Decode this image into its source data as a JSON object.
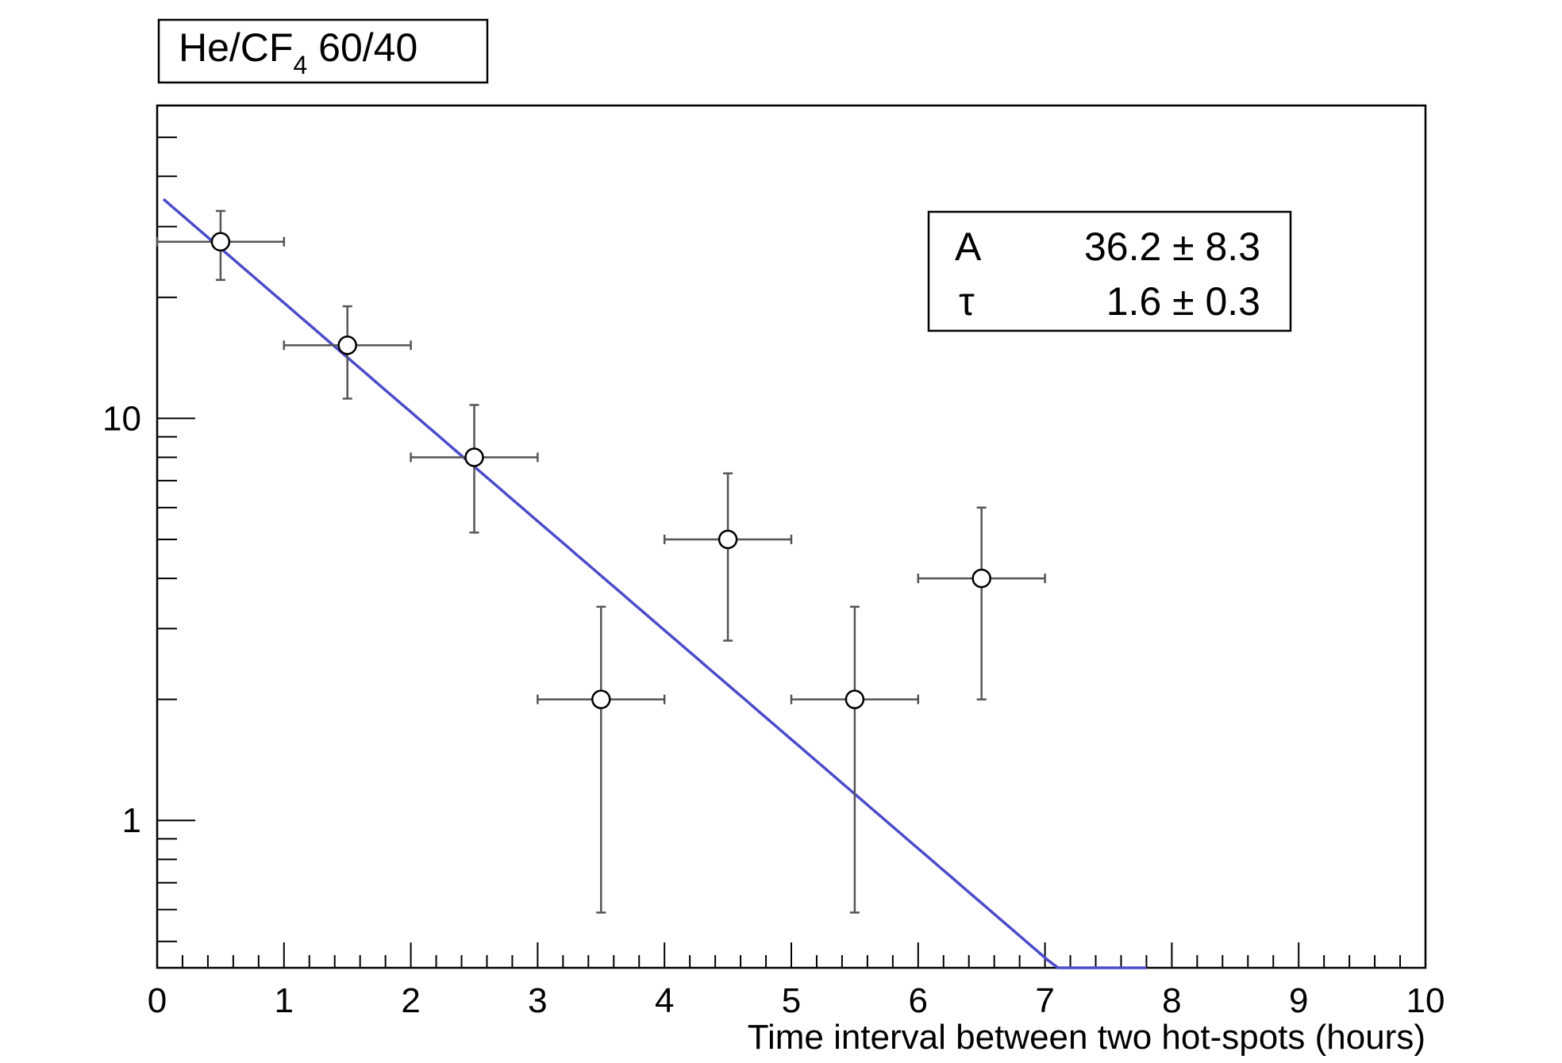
{
  "chart_data": {
    "type": "scatter",
    "title_base": "He/CF",
    "title_subscript": "4",
    "title_suffix": " 60/40",
    "xlabel": "Time interval between two hot-spots (hours)",
    "ylabel": "",
    "xlim": [
      0,
      10
    ],
    "ylim": [
      0.43,
      60
    ],
    "y_log": true,
    "grid": false,
    "x_tick_labels": [
      "0",
      "1",
      "2",
      "3",
      "4",
      "5",
      "6",
      "7",
      "8",
      "9",
      "10"
    ],
    "y_tick_labels": [
      "1",
      "10"
    ],
    "series": [
      {
        "points": [
          {
            "x": 0.5,
            "y": 27.5,
            "xerr": 0.5,
            "ylo": 22.1,
            "yhi": 32.8
          },
          {
            "x": 1.5,
            "y": 15.2,
            "xerr": 0.5,
            "ylo": 11.2,
            "yhi": 19.0
          },
          {
            "x": 2.5,
            "y": 8.0,
            "xerr": 0.5,
            "ylo": 5.2,
            "yhi": 10.8
          },
          {
            "x": 3.5,
            "y": 2.0,
            "xerr": 0.5,
            "ylo": 0.59,
            "yhi": 3.4
          },
          {
            "x": 4.5,
            "y": 5.0,
            "xerr": 0.5,
            "ylo": 2.8,
            "yhi": 7.3
          },
          {
            "x": 5.5,
            "y": 2.0,
            "xerr": 0.5,
            "ylo": 0.59,
            "yhi": 3.4
          },
          {
            "x": 6.5,
            "y": 4.0,
            "xerr": 0.5,
            "ylo": 2.0,
            "yhi": 6.0
          }
        ],
        "color": "#555555"
      }
    ],
    "fit": {
      "function": "A*exp(-x/tau)",
      "x_range": [
        0.05,
        7.8
      ],
      "color": "#4b4bcc",
      "params": [
        {
          "name": "A",
          "value": "36.2 ± 8.3"
        },
        {
          "name": "τ",
          "value": "1.6 ± 0.3"
        }
      ],
      "A": 36.2,
      "tau": 1.6
    }
  }
}
